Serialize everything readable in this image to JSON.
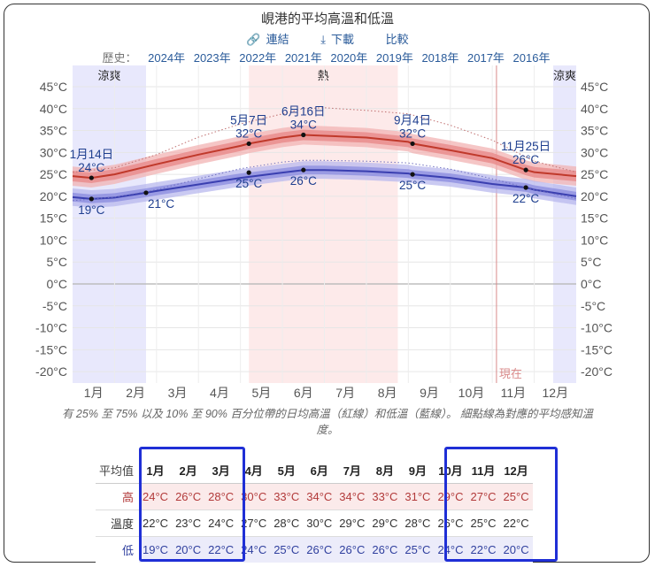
{
  "header": {
    "title": "峴港的平均高溫和低溫",
    "link_label": "連結",
    "download_label": "下載",
    "compare_label": "比較",
    "history_label": "歷史：",
    "years": [
      "2024年",
      "2023年",
      "2022年",
      "2021年",
      "2020年",
      "2019年",
      "2018年",
      "2017年",
      "2016年"
    ]
  },
  "chart_data": {
    "type": "line",
    "title": "峴港的平均高溫和低溫",
    "x_labels": [
      "1月",
      "2月",
      "3月",
      "4月",
      "5月",
      "6月",
      "7月",
      "8月",
      "9月",
      "10月",
      "11月",
      "12月"
    ],
    "y_ticks": [
      "45°C",
      "40°C",
      "35°C",
      "30°C",
      "25°C",
      "20°C",
      "15°C",
      "10°C",
      "5°C",
      "0°C",
      "-5°C",
      "-10°C",
      "-15°C",
      "-20°C"
    ],
    "y_tick_values": [
      45,
      40,
      35,
      30,
      25,
      20,
      15,
      10,
      5,
      0,
      -5,
      -10,
      -15,
      -20
    ],
    "ylim": [
      -20,
      45
    ],
    "x_domain": [
      0,
      12
    ],
    "seasons": [
      {
        "name": "涼爽",
        "start": 0.0,
        "end": 1.75,
        "color": "#e4e4fb"
      },
      {
        "name": "熱",
        "start": 4.2,
        "end": 7.75,
        "color": "#fde6e6"
      },
      {
        "name": "涼爽",
        "start": 11.45,
        "end": 12.0,
        "color": "#e4e4fb"
      }
    ],
    "now_label": "現在",
    "now_x": 10.1,
    "series": [
      {
        "name": "平均高溫",
        "color": "#c0392b",
        "x": [
          0,
          0.45,
          1,
          2,
          3,
          4,
          4.2,
          5,
          5.5,
          6,
          7,
          8,
          8.1,
          9,
          10,
          10.8,
          11,
          12
        ],
        "values": [
          24.6,
          24.2,
          25.0,
          27.3,
          29.5,
          31.5,
          32.0,
          33.4,
          34.0,
          33.8,
          33.4,
          32.4,
          32.0,
          30.5,
          28.7,
          26.0,
          25.5,
          24.6
        ],
        "band_25_75": [
          1.2,
          1.2
        ],
        "band_10_90": [
          2.2,
          2.2
        ]
      },
      {
        "name": "平均低溫",
        "color": "#3a3fb0",
        "x": [
          0,
          0.45,
          1,
          1.75,
          2,
          3,
          4,
          5,
          5.5,
          6,
          7,
          8,
          8.1,
          9,
          10,
          10.8,
          11,
          12
        ],
        "values": [
          19.8,
          19.4,
          19.7,
          20.8,
          21.2,
          22.7,
          24.2,
          25.4,
          26.0,
          26.0,
          25.7,
          25.2,
          25.0,
          24.2,
          22.8,
          22.0,
          21.5,
          20.0
        ],
        "band_25_75": [
          1.0,
          1.0
        ],
        "band_10_90": [
          2.0,
          2.0
        ]
      },
      {
        "name": "高溫體感",
        "style": "dotted",
        "color": "#c07070",
        "x": [
          0,
          1,
          2,
          3,
          4,
          5,
          5.5,
          6,
          7,
          8,
          9,
          10,
          11,
          12
        ],
        "values": [
          25.5,
          26.5,
          29.5,
          33.5,
          36.5,
          38.8,
          40.0,
          40.2,
          39.6,
          38.8,
          36.2,
          32.8,
          28.0,
          25.5
        ]
      },
      {
        "name": "低溫體感",
        "style": "dotted",
        "color": "#7070c0",
        "x": [
          0,
          1,
          2,
          3,
          4,
          5,
          5.5,
          6,
          7,
          8,
          9,
          10,
          11,
          12
        ],
        "values": [
          19.0,
          19.8,
          21.5,
          24.0,
          26.3,
          27.8,
          28.2,
          28.2,
          28.0,
          27.6,
          26.2,
          24.0,
          21.5,
          19.5
        ]
      }
    ],
    "annotations": [
      {
        "date": "1月14日",
        "label": "24°C",
        "x": 0.45,
        "y": 24.2,
        "pos": "above"
      },
      {
        "label": "19°C",
        "x": 0.45,
        "y": 19.4,
        "pos": "below"
      },
      {
        "label": "21°C",
        "x": 1.75,
        "y": 20.8,
        "pos": "below-right"
      },
      {
        "date": "5月7日",
        "label": "32°C",
        "x": 4.2,
        "y": 32.0,
        "pos": "above"
      },
      {
        "label": "25°C",
        "x": 4.2,
        "y": 25.4,
        "pos": "below"
      },
      {
        "date": "6月16日",
        "label": "34°C",
        "x": 5.5,
        "y": 34.0,
        "pos": "above"
      },
      {
        "label": "26°C",
        "x": 5.5,
        "y": 26.0,
        "pos": "below"
      },
      {
        "date": "9月4日",
        "label": "32°C",
        "x": 8.1,
        "y": 32.0,
        "pos": "above"
      },
      {
        "label": "25°C",
        "x": 8.1,
        "y": 25.0,
        "pos": "below"
      },
      {
        "date": "11月25日",
        "label": "26°C",
        "x": 10.8,
        "y": 26.0,
        "pos": "above"
      },
      {
        "label": "22°C",
        "x": 10.8,
        "y": 22.0,
        "pos": "below"
      }
    ]
  },
  "caption": "有 25% 至 75% 以及 10% 至 90% 百分位帶的日均高溫（紅線）和低溫（藍線）。 細點線為對應的平均感知溫度。",
  "table": {
    "corner": "平均值",
    "months": [
      "1月",
      "2月",
      "3月",
      "4月",
      "5月",
      "6月",
      "7月",
      "8月",
      "9月",
      "10月",
      "11月",
      "12月"
    ],
    "rows": [
      {
        "label": "高",
        "values": [
          "24°C",
          "26°C",
          "28°C",
          "30°C",
          "33°C",
          "34°C",
          "34°C",
          "33°C",
          "31°C",
          "29°C",
          "27°C",
          "25°C"
        ]
      },
      {
        "label": "溫度",
        "values": [
          "22°C",
          "23°C",
          "24°C",
          "27°C",
          "28°C",
          "30°C",
          "29°C",
          "29°C",
          "28°C",
          "26°C",
          "25°C",
          "22°C"
        ]
      },
      {
        "label": "低",
        "values": [
          "19°C",
          "20°C",
          "22°C",
          "24°C",
          "25°C",
          "26°C",
          "26°C",
          "26°C",
          "25°C",
          "24°C",
          "22°C",
          "20°C"
        ]
      }
    ]
  }
}
